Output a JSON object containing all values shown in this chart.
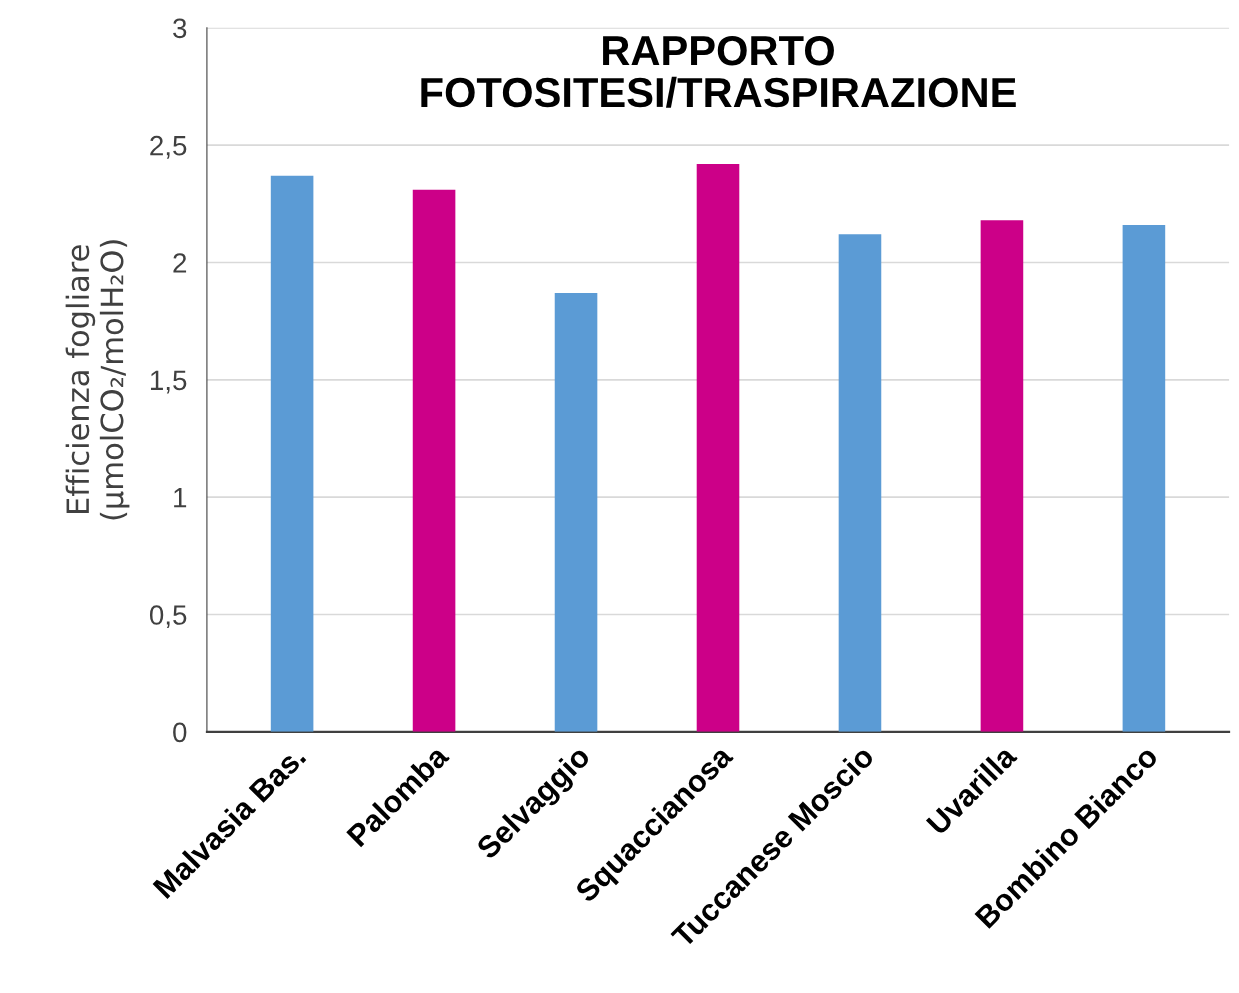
{
  "chart_data": {
    "type": "bar",
    "title": "RAPPORTO\nFOTOSITESI/TRASPIRAZIONE",
    "ylabel": "Efficienza fogliare\n(µmolCO₂/molH₂O)",
    "categories": [
      "Malvasia Bas.",
      "Palomba",
      "Selvaggio",
      "Squaccianosa",
      "Tuccanese Moscio",
      "Uvarilla",
      "Bombino Bianco"
    ],
    "values": [
      2.37,
      2.31,
      1.87,
      2.42,
      2.12,
      2.18,
      2.16
    ],
    "colors": [
      "#5b9bd5",
      "#cc0088",
      "#5b9bd5",
      "#cc0088",
      "#5b9bd5",
      "#cc0088",
      "#5b9bd5"
    ],
    "ylim": [
      0,
      3
    ],
    "yticks": [
      0,
      {
        "value": 0.5,
        "label": "0,5"
      },
      1,
      {
        "value": 1.5,
        "label": "1,5"
      },
      2,
      {
        "value": 2.5,
        "label": "2,5"
      },
      3
    ],
    "grid": "y"
  }
}
